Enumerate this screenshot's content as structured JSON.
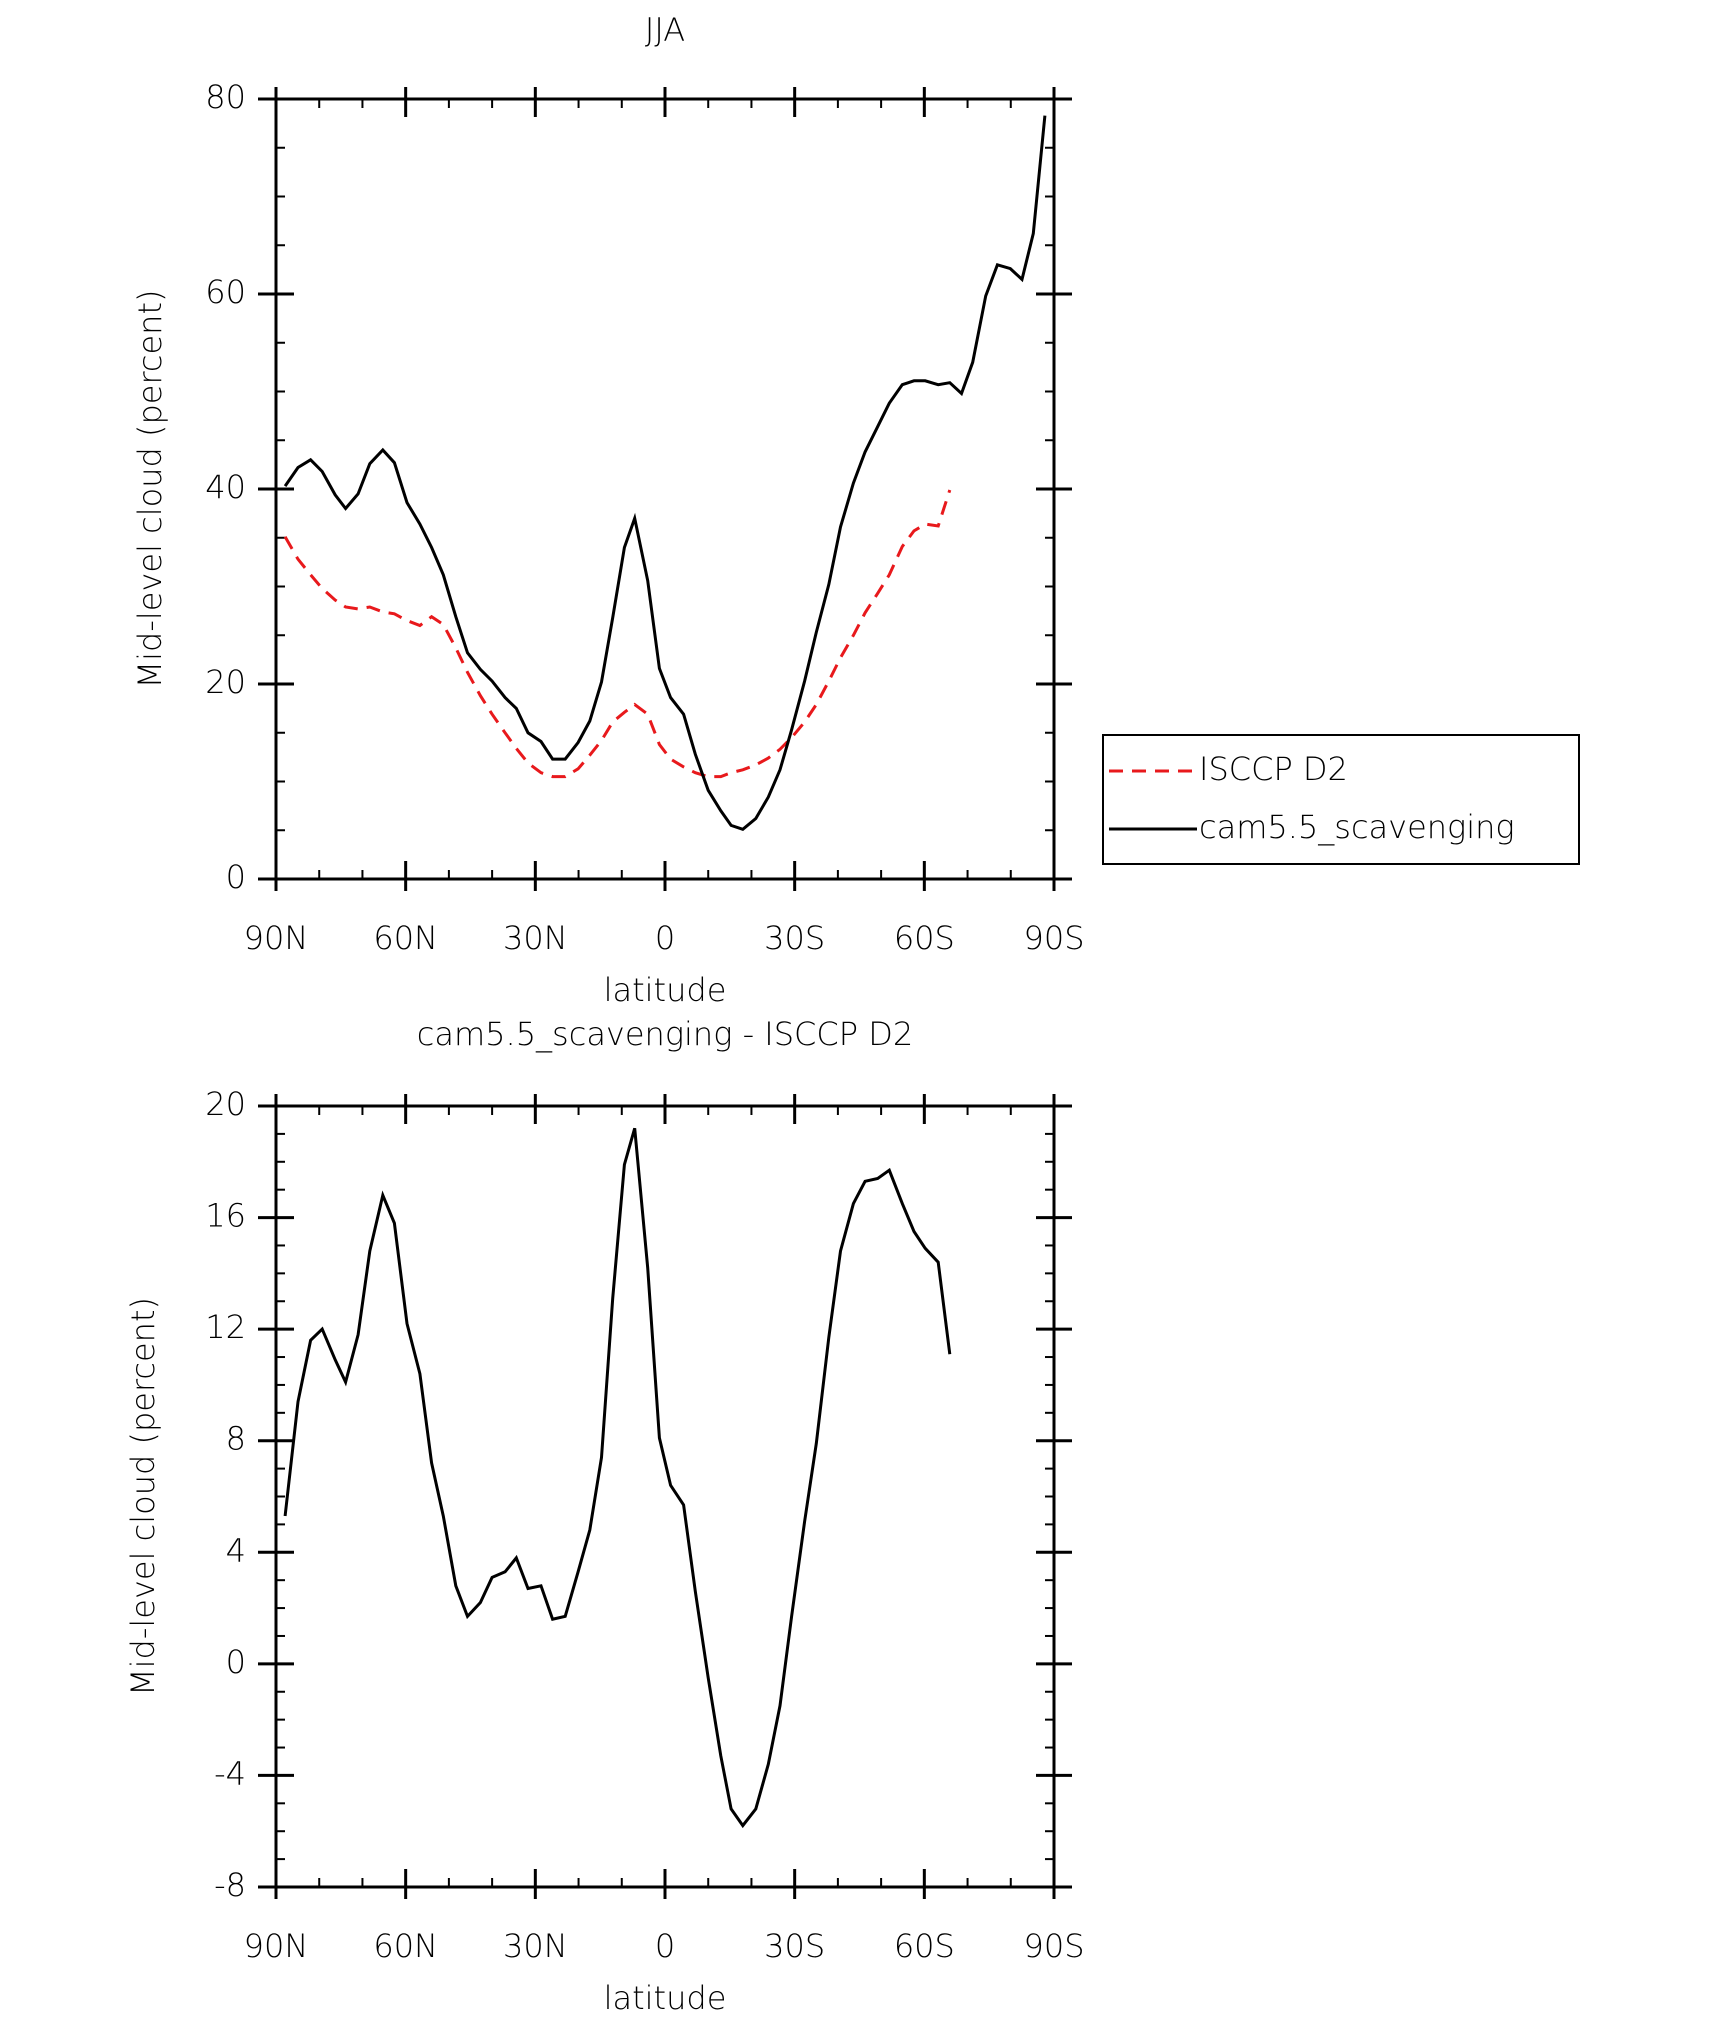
{
  "chart_data": [
    {
      "type": "line",
      "title": "JJA",
      "xlabel": "latitude",
      "ylabel": "Mid-level cloud (percent)",
      "x": [
        87.9,
        84.9,
        82.0,
        79.3,
        76.3,
        73.9,
        71.0,
        68.3,
        65.3,
        62.6,
        59.7,
        56.7,
        54.0,
        51.3,
        48.4,
        45.7,
        42.7,
        40.0,
        37.0,
        34.4,
        31.7,
        28.7,
        26.0,
        23.1,
        20.1,
        17.4,
        14.7,
        12.1,
        9.4,
        7.0,
        4.0,
        1.3,
        -1.3,
        -4.3,
        -7.0,
        -10.0,
        -12.9,
        -15.3,
        -18.0,
        -21.0,
        -23.9,
        -26.6,
        -29.3,
        -32.3,
        -35.0,
        -37.9,
        -40.6,
        -43.6,
        -46.3,
        -49.2,
        -51.9,
        -54.9,
        -57.6,
        -60.2,
        -63.2,
        -65.9,
        -68.6,
        -71.2,
        -74.2,
        -76.9,
        -79.9,
        -82.6,
        -85.2,
        -87.9
      ],
      "series": [
        {
          "name": "ISCCP D2",
          "color": "#e8191c",
          "line_style": "dashed",
          "values": [
            35.1,
            32.8,
            31.2,
            29.8,
            28.6,
            27.9,
            27.7,
            27.9,
            27.4,
            27.2,
            26.5,
            26.0,
            26.9,
            26.1,
            23.7,
            21.2,
            18.8,
            16.9,
            15.0,
            13.4,
            11.9,
            10.9,
            10.5,
            10.5,
            11.3,
            12.7,
            14.2,
            16.1,
            17.1,
            17.9,
            16.9,
            13.8,
            12.3,
            11.5,
            10.9,
            10.5,
            10.5,
            10.9,
            11.2,
            11.7,
            12.4,
            13.3,
            14.5,
            16.1,
            17.9,
            20.3,
            22.7,
            25.0,
            27.3,
            29.3,
            31.2,
            34.1,
            35.7,
            36.4,
            36.2,
            39.9,
            null,
            null,
            null,
            null,
            null,
            null,
            null,
            null
          ]
        },
        {
          "name": "cam5.5_scavenging",
          "color": "#000000",
          "line_style": "solid",
          "values": [
            40.3,
            42.2,
            43.0,
            41.8,
            39.4,
            38.0,
            39.5,
            42.6,
            44.0,
            42.7,
            38.6,
            36.4,
            34.0,
            31.2,
            26.9,
            23.2,
            21.5,
            20.3,
            18.6,
            17.5,
            15.0,
            14.1,
            12.3,
            12.3,
            14.0,
            16.2,
            20.2,
            26.8,
            34.0,
            37.0,
            30.6,
            21.6,
            18.6,
            16.9,
            12.8,
            9.1,
            7.0,
            5.5,
            5.1,
            6.2,
            8.4,
            11.2,
            15.3,
            20.3,
            25.3,
            30.2,
            36.1,
            40.6,
            43.8,
            46.4,
            48.8,
            50.7,
            51.1,
            51.1,
            50.7,
            50.9,
            49.8,
            53.0,
            59.8,
            63.0,
            62.6,
            61.5,
            66.2,
            78.3
          ]
        }
      ],
      "xlim": [
        90,
        -90
      ],
      "xticks": [
        {
          "value": 90,
          "label": "90N"
        },
        {
          "value": 60,
          "label": "60N"
        },
        {
          "value": 30,
          "label": "30N"
        },
        0,
        {
          "value": -30,
          "label": "30S"
        },
        {
          "value": -60,
          "label": "60S"
        },
        {
          "value": -90,
          "label": "90S"
        }
      ],
      "ylim": [
        0,
        80
      ],
      "yticks": [
        0,
        20,
        40,
        60,
        80
      ],
      "legend": "right"
    },
    {
      "type": "line",
      "title": "cam5.5_scavenging - ISCCP D2",
      "xlabel": "latitude",
      "ylabel": "Mid-level cloud (percent)",
      "x": [
        87.9,
        84.9,
        82.0,
        79.3,
        76.3,
        73.9,
        71.0,
        68.3,
        65.3,
        62.6,
        59.7,
        56.7,
        54.0,
        51.3,
        48.4,
        45.7,
        42.7,
        40.0,
        37.0,
        34.4,
        31.7,
        28.7,
        26.0,
        23.1,
        20.1,
        17.4,
        14.7,
        12.1,
        9.4,
        7.0,
        4.0,
        1.3,
        -1.3,
        -4.3,
        -7.0,
        -10.0,
        -12.9,
        -15.3,
        -18.0,
        -21.0,
        -23.9,
        -26.6,
        -29.3,
        -32.3,
        -35.0,
        -37.9,
        -40.6,
        -43.6,
        -46.3,
        -49.2,
        -51.9,
        -54.9,
        -57.6,
        -60.2,
        -63.2,
        -65.9
      ],
      "values": [
        5.3,
        9.4,
        11.6,
        12.0,
        10.9,
        10.1,
        11.8,
        14.8,
        16.8,
        15.8,
        12.2,
        10.4,
        7.2,
        5.3,
        2.8,
        1.7,
        2.2,
        3.1,
        3.3,
        3.8,
        2.7,
        2.8,
        1.6,
        1.7,
        3.3,
        4.8,
        7.4,
        13.1,
        17.9,
        19.2,
        14.2,
        8.1,
        6.4,
        5.7,
        2.6,
        -0.5,
        -3.3,
        -5.2,
        -5.8,
        -5.2,
        -3.6,
        -1.5,
        1.7,
        5.1,
        7.9,
        11.7,
        14.8,
        16.5,
        17.3,
        17.4,
        17.7,
        16.5,
        15.5,
        14.9,
        14.4,
        11.1
      ],
      "color": "#000000",
      "xlim": [
        90,
        -90
      ],
      "xticks": [
        {
          "value": 90,
          "label": "90N"
        },
        {
          "value": 60,
          "label": "60N"
        },
        {
          "value": 30,
          "label": "30N"
        },
        0,
        {
          "value": -30,
          "label": "30S"
        },
        {
          "value": -60,
          "label": "60S"
        },
        {
          "value": -90,
          "label": "90S"
        }
      ],
      "ylim": [
        -8,
        20
      ],
      "yticks": [
        -8,
        -4,
        0,
        4,
        8,
        12,
        16,
        20
      ]
    }
  ]
}
